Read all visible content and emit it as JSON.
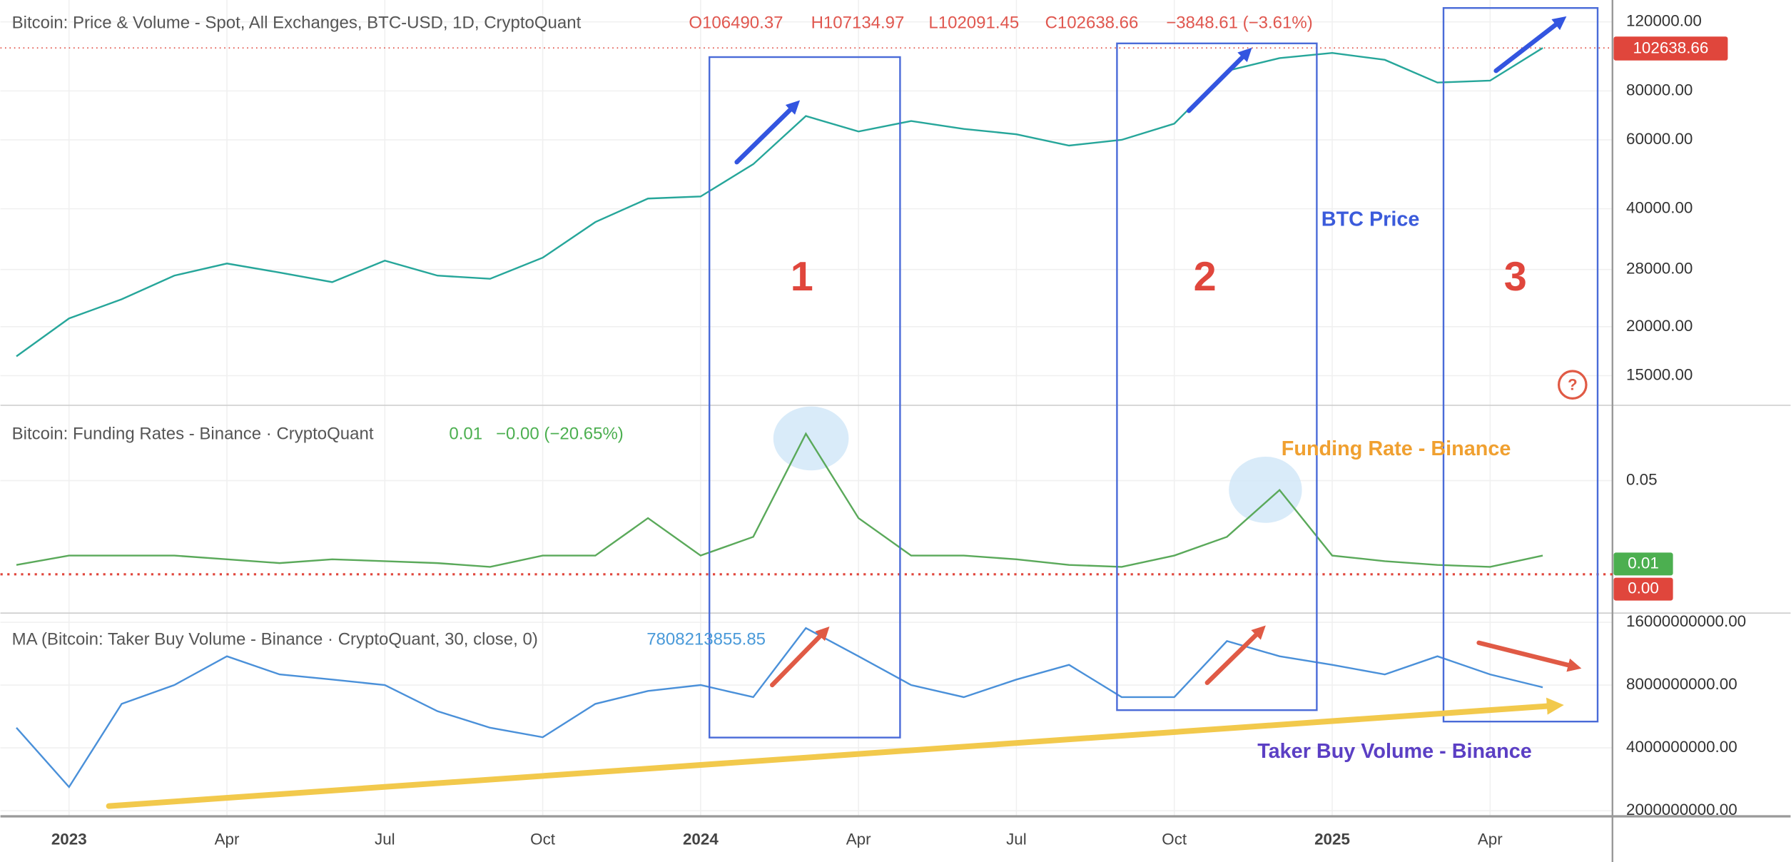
{
  "chart_data": [
    {
      "type": "line",
      "title": "Bitcoin: Price & Volume - Spot, All Exchanges, BTC-USD, 1D, CryptoQuant",
      "ohlc": [
        "O106490.37",
        "H107134.97",
        "L102091.45",
        "C102638.66",
        "−3848.61 (−3.61%)"
      ],
      "last_price_label": "102638.66",
      "annotation": "BTC Price",
      "log_scale": true,
      "color": "#26a69a",
      "values": [
        16800,
        21000,
        23500,
        27000,
        29000,
        27500,
        26000,
        29500,
        27000,
        26500,
        30000,
        37000,
        42500,
        43000,
        52000,
        69000,
        63000,
        67000,
        64000,
        62000,
        58000,
        60000,
        66000,
        90000,
        97000,
        100000,
        96000,
        84000,
        85000,
        103000
      ],
      "ylim": [
        12600,
        136500
      ],
      "yticks": [
        {
          "value": 15000,
          "label": "15000.00"
        },
        {
          "value": 20000,
          "label": "20000.00"
        },
        {
          "value": 28000,
          "label": "28000.00"
        },
        {
          "value": 40000,
          "label": "40000.00"
        },
        {
          "value": 60000,
          "label": "60000.00"
        },
        {
          "value": 80000,
          "label": "80000.00"
        },
        {
          "value": 120000,
          "label": "120000.00"
        }
      ]
    },
    {
      "type": "line",
      "title": "Bitcoin: Funding Rates - Binance · CryptoQuant",
      "legend_values": [
        "0.01",
        "−0.00 (−20.65%)"
      ],
      "badges": [
        "0.01",
        "0.00"
      ],
      "annotation": "Funding Rate - Binance",
      "log_scale": false,
      "color": "#5aa95a",
      "values": [
        0.005,
        0.01,
        0.01,
        0.01,
        0.008,
        0.006,
        0.008,
        0.007,
        0.006,
        0.004,
        0.01,
        0.01,
        0.03,
        0.01,
        0.02,
        0.075,
        0.03,
        0.01,
        0.01,
        0.008,
        0.005,
        0.004,
        0.01,
        0.02,
        0.045,
        0.01,
        0.007,
        0.005,
        0.004,
        0.01
      ],
      "ylim": [
        -0.0207,
        0.0902
      ],
      "yticks": [
        0.05
      ]
    },
    {
      "type": "line",
      "title": "MA (Bitcoin: Taker Buy Volume - Binance · CryptoQuant, 30, close, 0)",
      "legend_value": "7808213855.85",
      "annotation": "Taker Buy Volume - Binance",
      "log_scale": true,
      "color": "#4a90d9",
      "categories": [
        null,
        "2023",
        null,
        null,
        "Apr",
        null,
        null,
        "Jul",
        null,
        null,
        "Oct",
        null,
        null,
        "2024",
        null,
        null,
        "Apr",
        null,
        null,
        "Jul",
        null,
        null,
        "Oct",
        null,
        null,
        "2025",
        null,
        null,
        "Apr",
        null
      ],
      "values": [
        5000000000,
        2600000000,
        6500000000,
        8000000000,
        11000000000,
        9000000000,
        8500000000,
        8000000000,
        6000000000,
        5000000000,
        4500000000,
        6500000000,
        7500000000,
        8000000000,
        7000000000,
        15000000000,
        11000000000,
        8000000000,
        7000000000,
        8500000000,
        10000000000,
        7000000000,
        7000000000,
        13000000000,
        11000000000,
        10000000000,
        9000000000,
        11000000000,
        9000000000,
        7800000000
      ],
      "ylim": [
        1880000000,
        17700000000
      ],
      "yticks": [
        {
          "value": 2000000000,
          "label": "2000000000.00"
        },
        {
          "value": 4000000000,
          "label": "4000000000.00"
        },
        {
          "value": 8000000000,
          "label": "8000000000.00"
        },
        {
          "value": 16000000000,
          "label": "16000000000.00"
        }
      ]
    }
  ],
  "annotations": [
    "1",
    "2",
    "3"
  ]
}
